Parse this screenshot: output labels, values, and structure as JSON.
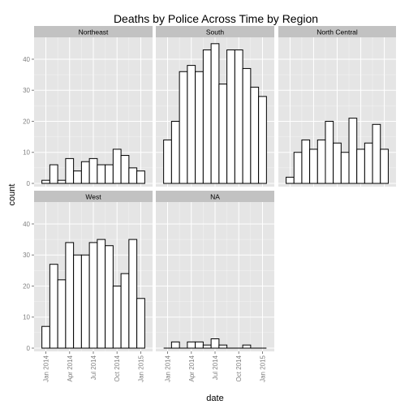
{
  "chart_data": {
    "type": "bar",
    "title": "Deaths by Police Across Time by Region",
    "xlabel": "date",
    "ylabel": "count",
    "ylim": [
      0,
      46
    ],
    "y_ticks": [
      0,
      10,
      20,
      30,
      40
    ],
    "x_ticks": [
      "Jan 2014",
      "Apr 2014",
      "Jul 2014",
      "Oct 2014",
      "Jan 2015"
    ],
    "grid": true,
    "facet_layout": "3 columns, 2 rows",
    "panels": [
      {
        "name": "Northeast",
        "values": [
          1,
          6,
          1,
          8,
          4,
          7,
          8,
          6,
          6,
          11,
          9,
          5,
          4
        ]
      },
      {
        "name": "South",
        "values": [
          14,
          20,
          36,
          38,
          36,
          43,
          45,
          32,
          43,
          43,
          37,
          31,
          28
        ]
      },
      {
        "name": "North Central",
        "values": [
          2,
          10,
          14,
          11,
          14,
          20,
          13,
          10,
          21,
          11,
          13,
          19,
          11
        ]
      },
      {
        "name": "West",
        "values": [
          7,
          27,
          22,
          34,
          30,
          30,
          34,
          35,
          33,
          20,
          24,
          35,
          16
        ]
      },
      {
        "name": "NA",
        "values": [
          0,
          2,
          0,
          2,
          2,
          1,
          3,
          1,
          0,
          0,
          1,
          0,
          0
        ]
      }
    ]
  },
  "colors": {
    "panel_background": "#e5e5e5",
    "grid": "#ffffff",
    "strip": "#c2c2c2",
    "bar_fill": "#ffffff",
    "bar_outline": "#000000",
    "text": "#000000",
    "tick_text": "#7f7f7f"
  }
}
